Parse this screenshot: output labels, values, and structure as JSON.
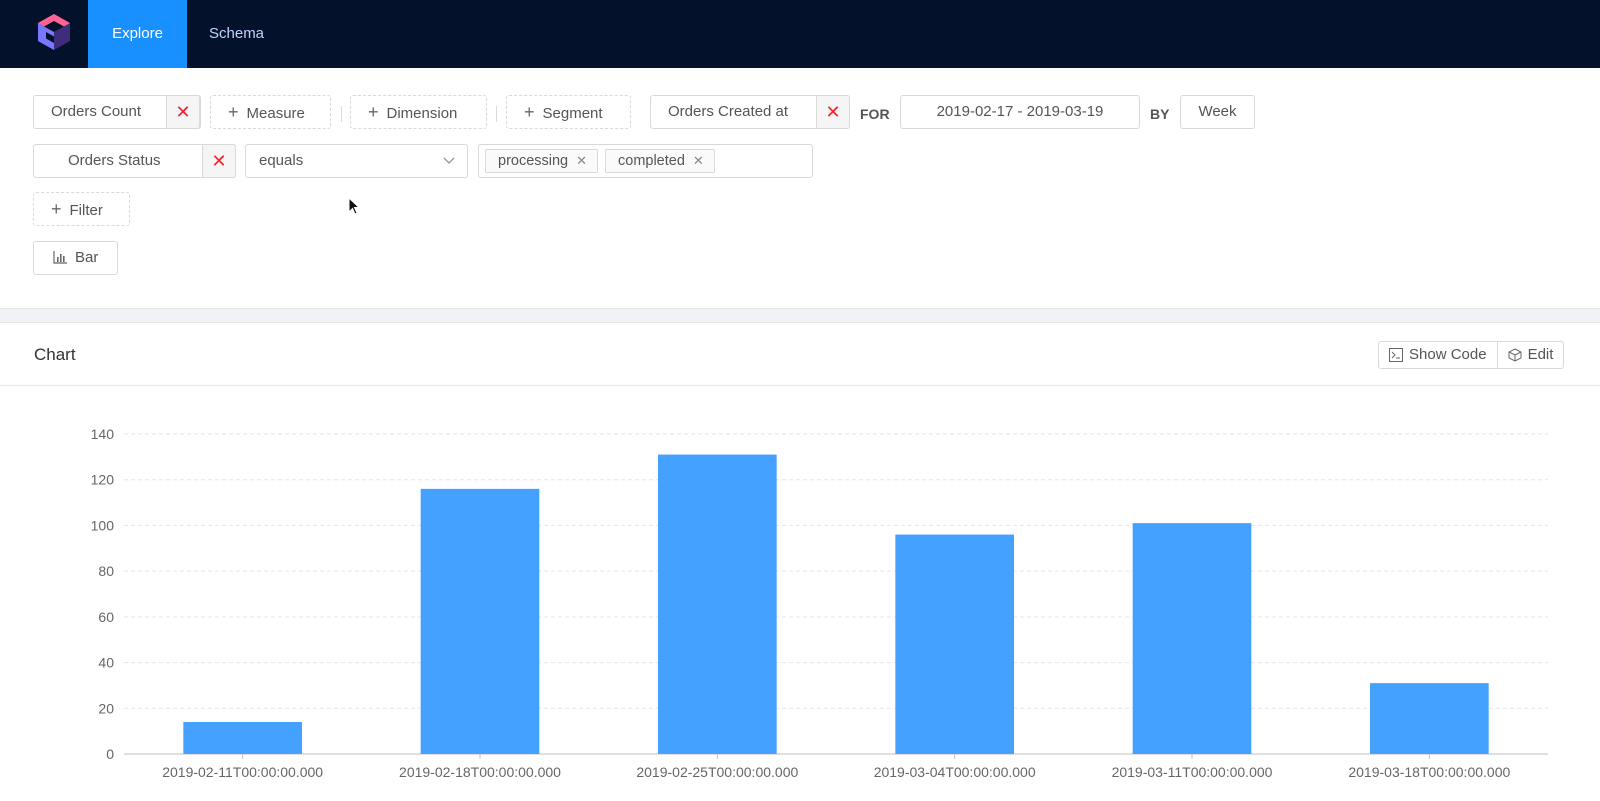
{
  "nav": {
    "tabs": [
      {
        "label": "Explore",
        "active": true
      },
      {
        "label": "Schema",
        "active": false
      }
    ]
  },
  "query": {
    "measure_chip": "Orders Count",
    "add_measure": "Measure",
    "add_dimension": "Dimension",
    "add_segment": "Segment",
    "time_dimension": "Orders Created at",
    "for_label": "FOR",
    "date_range": "2019-02-17 - 2019-03-19",
    "by_label": "BY",
    "granularity": "Week",
    "filter": {
      "member": "Orders Status",
      "operator": "equals",
      "values": [
        "processing",
        "completed"
      ]
    },
    "add_filter": "Filter",
    "chart_type": "Bar"
  },
  "card": {
    "title": "Chart",
    "show_code": "Show Code",
    "edit": "Edit"
  },
  "colors": {
    "nav_bg": "#04112a",
    "accent": "#1890ff",
    "bar": "#45a1ff",
    "remove": "#f5222d"
  },
  "chart_data": {
    "type": "bar",
    "categories": [
      "2019-02-11T00:00:00.000",
      "2019-02-18T00:00:00.000",
      "2019-02-25T00:00:00.000",
      "2019-03-04T00:00:00.000",
      "2019-03-11T00:00:00.000",
      "2019-03-18T00:00:00.000"
    ],
    "series": [
      {
        "values": [
          14,
          116,
          131,
          96,
          101,
          31
        ]
      }
    ],
    "yticks": [
      0,
      20,
      40,
      60,
      80,
      100,
      120,
      140
    ],
    "ylim": [
      0,
      140
    ],
    "grid": true,
    "legend": "none"
  }
}
